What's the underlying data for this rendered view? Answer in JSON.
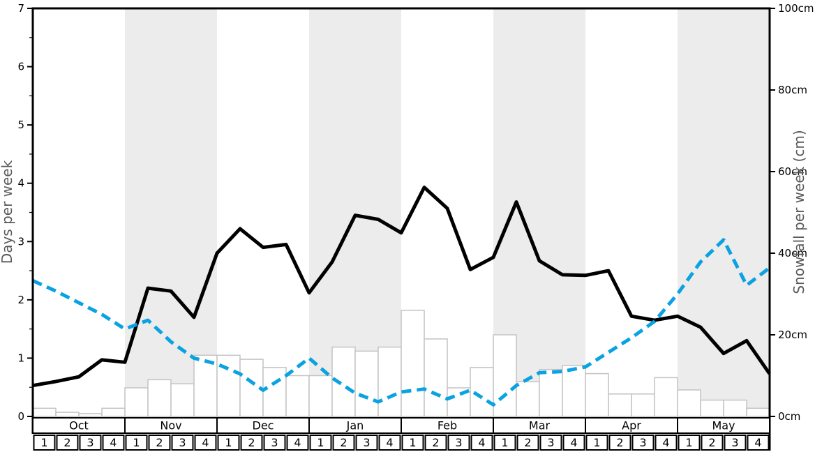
{
  "chart_data": {
    "type": "composite",
    "description_visible_text_only": true,
    "left_axis": {
      "label": "Days per week",
      "min": 0,
      "max": 7,
      "ticks": [
        0,
        1,
        2,
        3,
        4,
        5,
        6,
        7
      ],
      "minor_tick_step": 0.5
    },
    "right_axis": {
      "label": "Snowfall per week (cm)",
      "min": 0,
      "max": 100,
      "ticks": [
        0,
        20,
        40,
        60,
        80,
        100
      ],
      "tick_suffix": "cm"
    },
    "months": [
      "Oct",
      "Nov",
      "Dec",
      "Jan",
      "Feb",
      "Mar",
      "Apr",
      "May"
    ],
    "week_labels": [
      "1",
      "2",
      "3",
      "4"
    ],
    "shaded_months": [
      "Nov",
      "Jan",
      "Mar",
      "May"
    ],
    "bars": {
      "name": "snowfall-bars",
      "type": "bar",
      "axis": "right",
      "units": "cm",
      "values": [
        2,
        1,
        0.7,
        2,
        7,
        9,
        8,
        15,
        15,
        14,
        12,
        10,
        10,
        17,
        16,
        17,
        26,
        19,
        7,
        12,
        20,
        8.5,
        11.5,
        12.5,
        10.5,
        5.5,
        5.5,
        9.5,
        6.5,
        4,
        4,
        2
      ]
    },
    "lines": [
      {
        "name": "black-solid",
        "type": "line",
        "axis": "left",
        "style": "solid",
        "color": "#000000",
        "x_positions": "week_starts_plus_right_edge",
        "values": [
          0.53,
          0.6,
          0.68,
          0.97,
          0.93,
          2.2,
          2.15,
          1.7,
          2.8,
          3.22,
          2.9,
          2.95,
          2.12,
          2.65,
          3.45,
          3.38,
          3.15,
          3.93,
          3.57,
          2.52,
          2.73,
          3.68,
          2.67,
          2.43,
          2.42,
          2.5,
          1.72,
          1.65,
          1.72,
          1.53,
          1.08,
          1.3,
          0.73
        ]
      },
      {
        "name": "blue-dashed",
        "type": "line",
        "axis": "left",
        "style": "dashed",
        "color": "#0aa2e2",
        "x_positions": "week_starts_plus_right_edge",
        "values": [
          2.33,
          2.15,
          1.95,
          1.75,
          1.5,
          1.65,
          1.28,
          1.0,
          0.9,
          0.73,
          0.45,
          0.7,
          1.0,
          0.66,
          0.4,
          0.25,
          0.42,
          0.47,
          0.3,
          0.45,
          0.2,
          0.53,
          0.75,
          0.77,
          0.85,
          1.1,
          1.35,
          1.63,
          2.1,
          2.65,
          3.03,
          2.25,
          2.55
        ]
      }
    ],
    "colors": {
      "band": "#ececec",
      "bar_fill": "#ffffff",
      "bar_stroke": "#c4c4c4",
      "axis": "#000000",
      "axis_title": "#5a5a5a",
      "table_border": "#000000"
    },
    "grid": "off",
    "legend": "none"
  }
}
